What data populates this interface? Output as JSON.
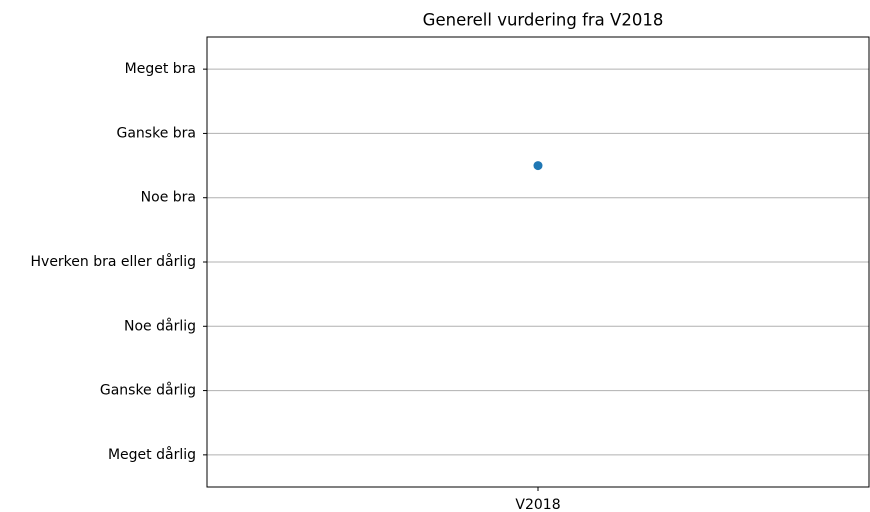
{
  "chart_data": {
    "type": "scatter",
    "title": "Generell vurdering fra V2018",
    "categories": [
      "V2018"
    ],
    "values": [
      5.5
    ],
    "color": "#1f77b4",
    "ylim": [
      0.5,
      7.5
    ],
    "yticks": [
      {
        "value": 1,
        "label": "Meget dårlig"
      },
      {
        "value": 2,
        "label": "Ganske dårlig"
      },
      {
        "value": 3,
        "label": "Noe dårlig"
      },
      {
        "value": 4,
        "label": "Hverken bra eller dårlig"
      },
      {
        "value": 5,
        "label": "Noe bra"
      },
      {
        "value": 6,
        "label": "Ganske bra"
      },
      {
        "value": 7,
        "label": "Meget bra"
      }
    ],
    "grid": true
  }
}
